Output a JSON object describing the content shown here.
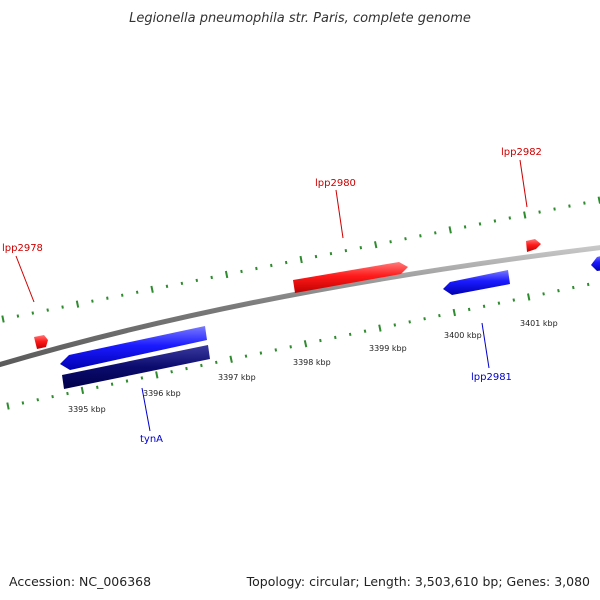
{
  "title": "Legionella pneumophila str. Paris, complete genome",
  "footer": {
    "accession": "Accession: NC_006368",
    "summary": "Topology: circular; Length: 3,503,610 bp; Genes: 3,080"
  },
  "colors": {
    "forward_gene": "#ff0000",
    "reverse_gene": "#0000ff",
    "highlight_gene": "#000080",
    "backbone": "#808080",
    "tick": "#2e8b2e",
    "forward_label": "#cc0000",
    "reverse_label": "#0000cc"
  },
  "scale_labels": [
    "3395 kbp",
    "3396 kbp",
    "3397 kbp",
    "3398 kbp",
    "3399 kbp",
    "3400 kbp",
    "3401 kbp"
  ],
  "gene_labels": [
    {
      "id": "lpp2978",
      "text": "lpp2978",
      "strand": "forward"
    },
    {
      "id": "lpp2980",
      "text": "lpp2980",
      "strand": "forward"
    },
    {
      "id": "lpp2982",
      "text": "lpp2982",
      "strand": "forward"
    },
    {
      "id": "lpp2981",
      "text": "lpp2981",
      "strand": "reverse"
    },
    {
      "id": "tyna",
      "text": "tynA",
      "strand": "reverse"
    }
  ]
}
